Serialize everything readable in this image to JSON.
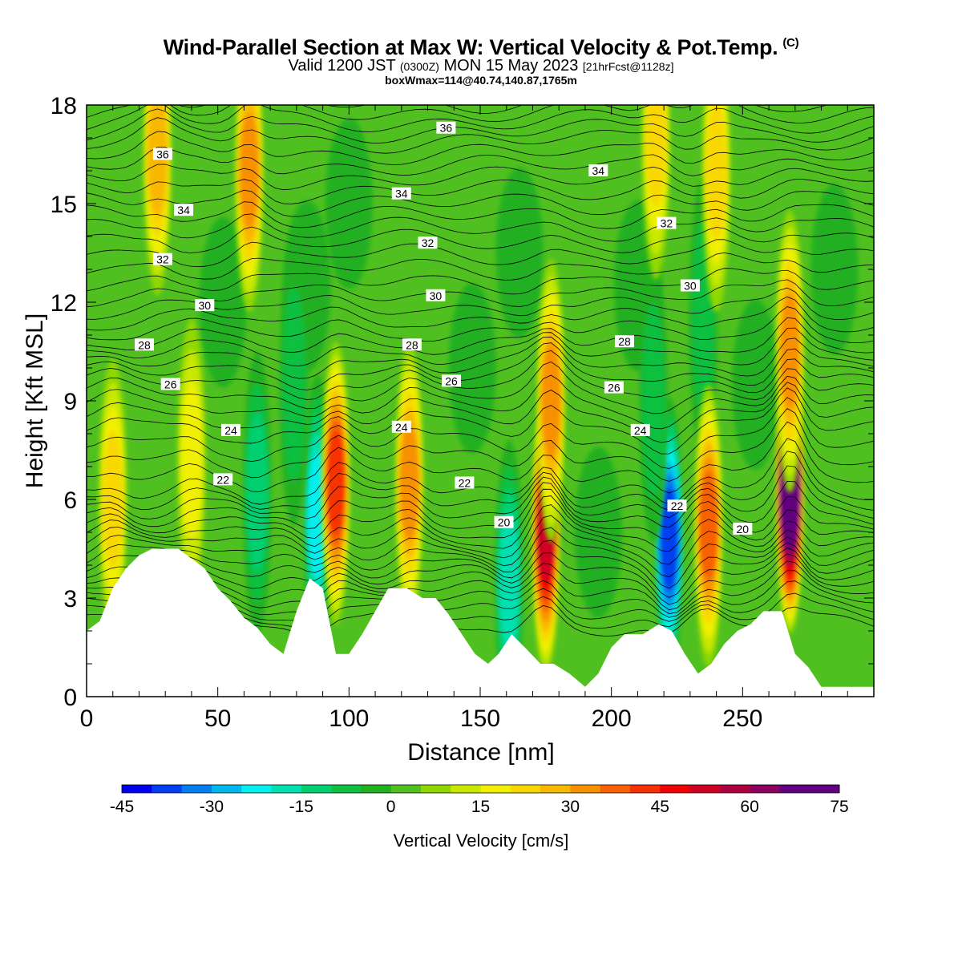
{
  "title": {
    "main": "Wind-Parallel Section at Max W: Vertical Velocity & Pot.Temp.",
    "copyright": "(C)",
    "valid_prefix": "Valid 1200 JST",
    "valid_utc": "(0300Z)",
    "valid_date": "MON 15 May 2023",
    "forecast": "[21hrFcst@1128z]",
    "box_info": "boxWmax=114@40.74,140.87,1765m"
  },
  "colors": {
    "terrain": "#ffffff",
    "contour": "#000000",
    "scale": [
      "#0000f0",
      "#0040f0",
      "#0080f0",
      "#00b8f0",
      "#00f0f0",
      "#00e0b0",
      "#00d070",
      "#10c040",
      "#20b020",
      "#50c020",
      "#90d800",
      "#c8e800",
      "#f0f000",
      "#f8d800",
      "#f8b800",
      "#f89000",
      "#f86000",
      "#f83000",
      "#f00000",
      "#d00020",
      "#b00040",
      "#900060",
      "#600080"
    ]
  },
  "colorbar": {
    "label": "Vertical Velocity [cm/s]",
    "ticks": [
      "-45",
      "-30",
      "-15",
      "0",
      "15",
      "30",
      "45",
      "60",
      "75"
    ],
    "min": -45,
    "max": 75,
    "step": 5
  },
  "chart_data": {
    "type": "heatmap",
    "title": "Wind-Parallel Section at Max W: Vertical Velocity & Pot.Temp.",
    "xlabel": "Distance [nm]",
    "ylabel": "Height [Kft MSL]",
    "xlim": [
      0,
      300
    ],
    "ylim": [
      0,
      18
    ],
    "x_ticks": [
      0,
      50,
      100,
      150,
      200,
      250
    ],
    "y_ticks": [
      0,
      3,
      6,
      9,
      12,
      15,
      18
    ],
    "fill_variable": "Vertical Velocity [cm/s]",
    "contour_variable": "Potential temperature (deg C)",
    "contour_labels": [
      {
        "value": "36",
        "x": 29,
        "y": 16.5
      },
      {
        "value": "36",
        "x": 137,
        "y": 17.3
      },
      {
        "value": "34",
        "x": 37,
        "y": 14.8
      },
      {
        "value": "34",
        "x": 120,
        "y": 15.3
      },
      {
        "value": "34",
        "x": 195,
        "y": 16.0
      },
      {
        "value": "32",
        "x": 29,
        "y": 13.3
      },
      {
        "value": "32",
        "x": 130,
        "y": 13.8
      },
      {
        "value": "32",
        "x": 221,
        "y": 14.4
      },
      {
        "value": "30",
        "x": 45,
        "y": 11.9
      },
      {
        "value": "30",
        "x": 133,
        "y": 12.2
      },
      {
        "value": "30",
        "x": 230,
        "y": 12.5
      },
      {
        "value": "28",
        "x": 22,
        "y": 10.7
      },
      {
        "value": "28",
        "x": 124,
        "y": 10.7
      },
      {
        "value": "28",
        "x": 205,
        "y": 10.8
      },
      {
        "value": "26",
        "x": 32,
        "y": 9.5
      },
      {
        "value": "26",
        "x": 139,
        "y": 9.6
      },
      {
        "value": "26",
        "x": 201,
        "y": 9.4
      },
      {
        "value": "24",
        "x": 55,
        "y": 8.1
      },
      {
        "value": "24",
        "x": 120,
        "y": 8.2
      },
      {
        "value": "24",
        "x": 211,
        "y": 8.1
      },
      {
        "value": "22",
        "x": 52,
        "y": 6.6
      },
      {
        "value": "22",
        "x": 144,
        "y": 6.5
      },
      {
        "value": "22",
        "x": 225,
        "y": 5.8
      },
      {
        "value": "20",
        "x": 159,
        "y": 5.3
      },
      {
        "value": "20",
        "x": 250,
        "y": 5.1
      }
    ],
    "terrain_height_kft": [
      {
        "x": 0,
        "h": 2.0
      },
      {
        "x": 5,
        "h": 2.3
      },
      {
        "x": 10,
        "h": 3.3
      },
      {
        "x": 15,
        "h": 3.9
      },
      {
        "x": 20,
        "h": 4.3
      },
      {
        "x": 25,
        "h": 4.5
      },
      {
        "x": 35,
        "h": 4.5
      },
      {
        "x": 40,
        "h": 4.2
      },
      {
        "x": 45,
        "h": 3.9
      },
      {
        "x": 50,
        "h": 3.3
      },
      {
        "x": 55,
        "h": 2.9
      },
      {
        "x": 60,
        "h": 2.4
      },
      {
        "x": 65,
        "h": 2.1
      },
      {
        "x": 70,
        "h": 1.6
      },
      {
        "x": 75,
        "h": 1.3
      },
      {
        "x": 80,
        "h": 2.6
      },
      {
        "x": 85,
        "h": 3.6
      },
      {
        "x": 90,
        "h": 3.3
      },
      {
        "x": 95,
        "h": 1.3
      },
      {
        "x": 100,
        "h": 1.3
      },
      {
        "x": 105,
        "h": 1.9
      },
      {
        "x": 110,
        "h": 2.6
      },
      {
        "x": 115,
        "h": 3.3
      },
      {
        "x": 122,
        "h": 3.3
      },
      {
        "x": 128,
        "h": 3.0
      },
      {
        "x": 133,
        "h": 3.0
      },
      {
        "x": 138,
        "h": 2.5
      },
      {
        "x": 143,
        "h": 1.9
      },
      {
        "x": 148,
        "h": 1.3
      },
      {
        "x": 153,
        "h": 1.0
      },
      {
        "x": 157,
        "h": 1.3
      },
      {
        "x": 162,
        "h": 1.9
      },
      {
        "x": 167,
        "h": 1.5
      },
      {
        "x": 173,
        "h": 1.0
      },
      {
        "x": 178,
        "h": 1.0
      },
      {
        "x": 184,
        "h": 0.7
      },
      {
        "x": 190,
        "h": 0.3
      },
      {
        "x": 195,
        "h": 0.7
      },
      {
        "x": 200,
        "h": 1.5
      },
      {
        "x": 205,
        "h": 1.9
      },
      {
        "x": 212,
        "h": 1.9
      },
      {
        "x": 218,
        "h": 2.2
      },
      {
        "x": 223,
        "h": 2.0
      },
      {
        "x": 228,
        "h": 1.3
      },
      {
        "x": 233,
        "h": 0.7
      },
      {
        "x": 238,
        "h": 1.0
      },
      {
        "x": 243,
        "h": 1.6
      },
      {
        "x": 248,
        "h": 2.0
      },
      {
        "x": 253,
        "h": 2.2
      },
      {
        "x": 258,
        "h": 2.6
      },
      {
        "x": 265,
        "h": 2.6
      },
      {
        "x": 270,
        "h": 1.3
      },
      {
        "x": 275,
        "h": 0.9
      },
      {
        "x": 280,
        "h": 0.3
      },
      {
        "x": 290,
        "h": 0.3
      },
      {
        "x": 300,
        "h": 0.3
      }
    ],
    "updraft_cores": [
      {
        "x": 10,
        "z": 6.0,
        "w": 22
      },
      {
        "x": 27,
        "z": 16.5,
        "w": 25
      },
      {
        "x": 40,
        "z": 7.2,
        "w": 18
      },
      {
        "x": 62,
        "z": 16.0,
        "w": 33
      },
      {
        "x": 95,
        "z": 6.5,
        "w": 40
      },
      {
        "x": 123,
        "z": 6.5,
        "w": 32
      },
      {
        "x": 175,
        "z": 5.0,
        "w": 52
      },
      {
        "x": 177,
        "z": 9.0,
        "w": 32
      },
      {
        "x": 217,
        "z": 17.0,
        "w": 22
      },
      {
        "x": 237,
        "z": 5.2,
        "w": 35
      },
      {
        "x": 240,
        "z": 16.0,
        "w": 22
      },
      {
        "x": 268,
        "z": 6.2,
        "w": 75
      },
      {
        "x": 268,
        "z": 10.5,
        "w": 30
      }
    ],
    "downdraft_cores": [
      {
        "x": 65,
        "z": 6.2,
        "w": -18
      },
      {
        "x": 88,
        "z": 5.5,
        "w": -28
      },
      {
        "x": 161,
        "z": 3.5,
        "w": -22
      },
      {
        "x": 222,
        "z": 4.8,
        "w": -44
      },
      {
        "x": 216,
        "z": 9.0,
        "w": -12
      },
      {
        "x": 235,
        "z": 11.5,
        "w": -12
      },
      {
        "x": 79,
        "z": 9.5,
        "w": -10
      }
    ]
  }
}
